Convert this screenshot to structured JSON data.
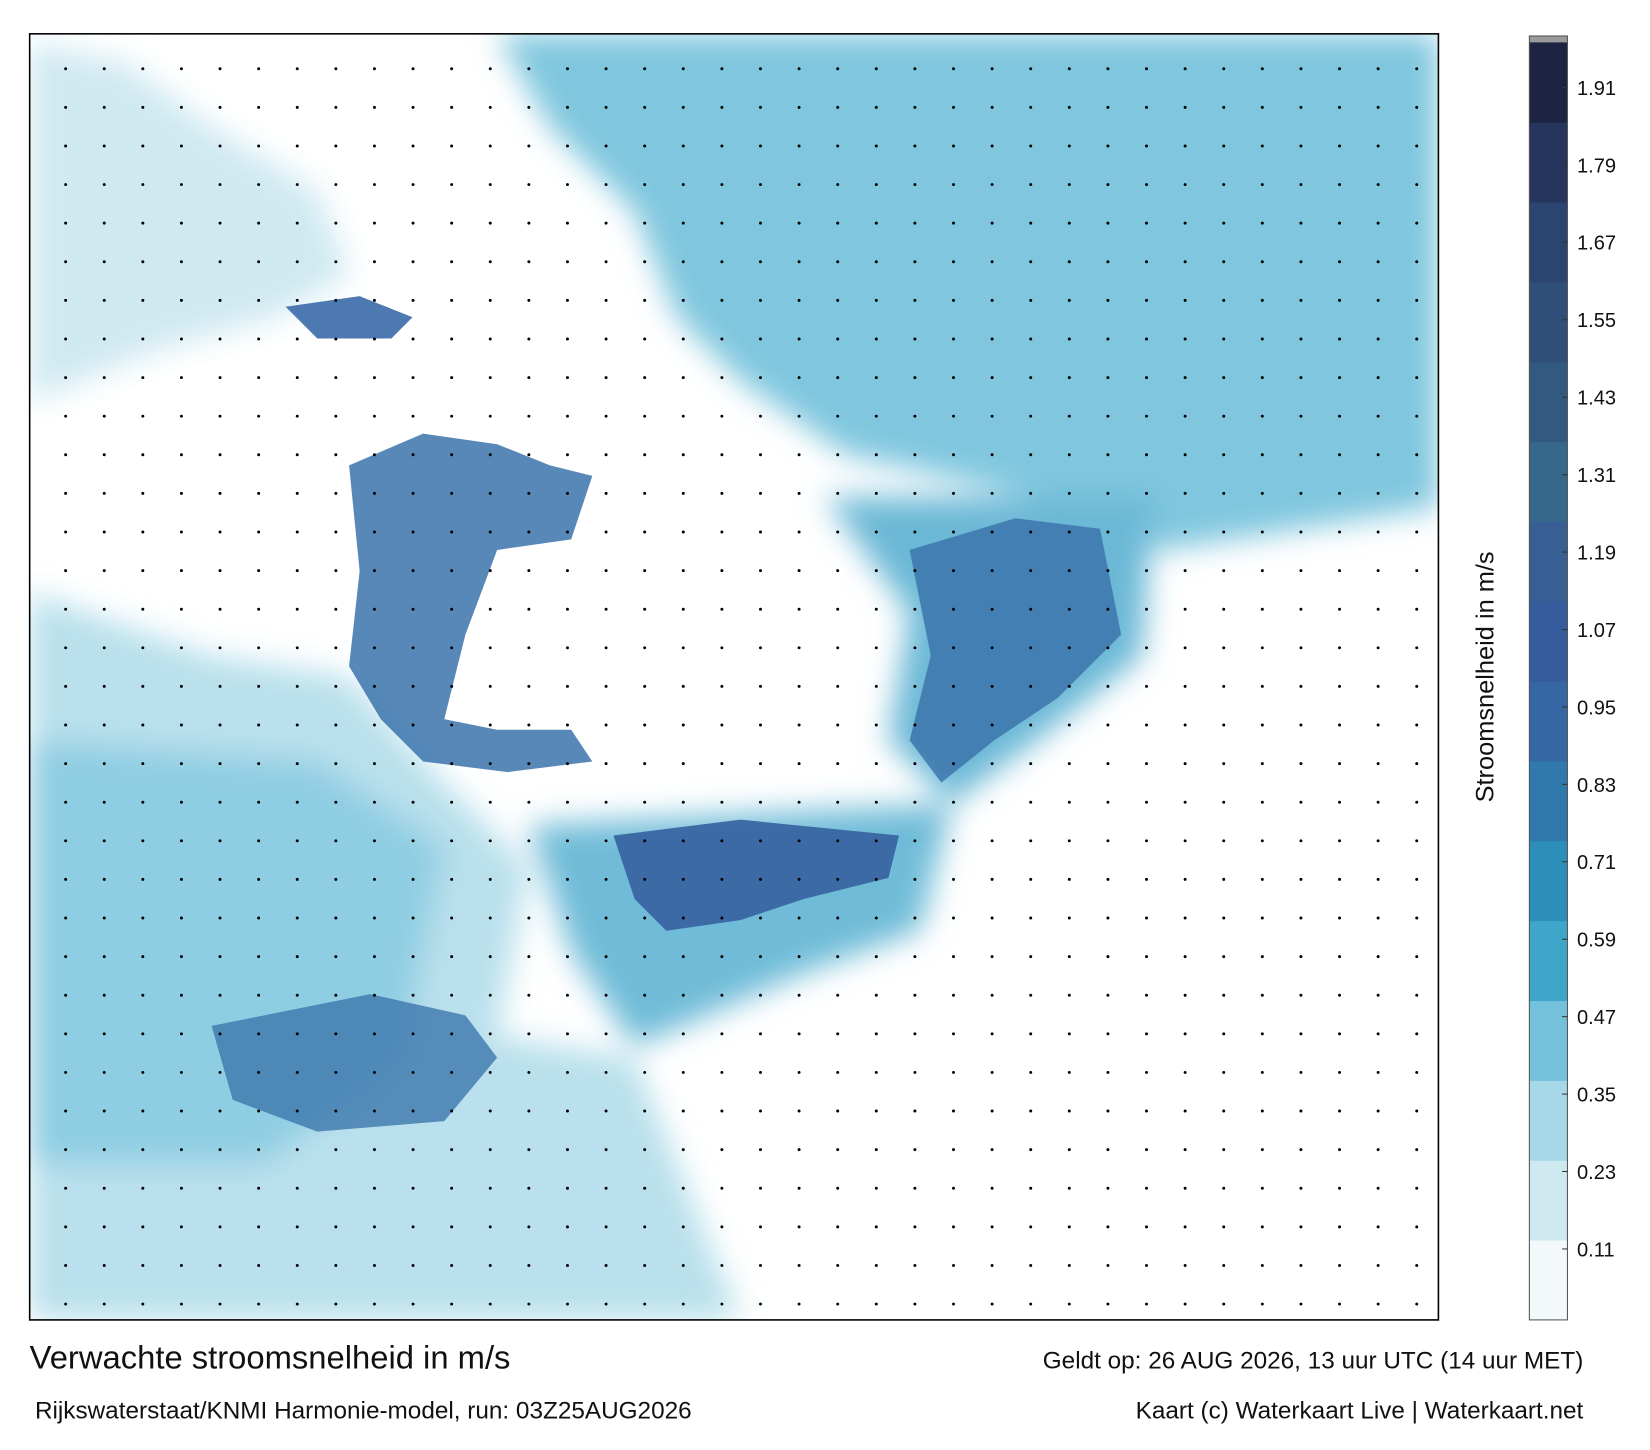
{
  "title": "Verwachte stroomsnelheid in m/s",
  "subtitle": "Rijkswaterstaat/KNMI Harmonie-model, run: 03Z25AUG2026",
  "valid_time": "Geldt op: 26 AUG 2026, 13 uur UTC (14 uur MET)",
  "credit": "Kaart (c) Waterkaart Live | Waterkaart.net",
  "colorbar": {
    "label": "Stroomsnelheid in m/s",
    "range": [
      0,
      1.98
    ],
    "ticks": [
      0.11,
      0.23,
      0.35,
      0.47,
      0.59,
      0.71,
      0.83,
      0.95,
      1.07,
      1.19,
      1.31,
      1.43,
      1.55,
      1.67,
      1.79,
      1.91
    ],
    "colors": [
      "#f3f9fb",
      "#cfe9f1",
      "#a6d8e8",
      "#74c1dc",
      "#3ea6c9",
      "#2d8fb9",
      "#2f79ad",
      "#3467a4",
      "#355d9d",
      "#375f94",
      "#35688a",
      "#32597f",
      "#2f4f78",
      "#2b4470",
      "#25355d",
      "#1c2442"
    ]
  }
}
